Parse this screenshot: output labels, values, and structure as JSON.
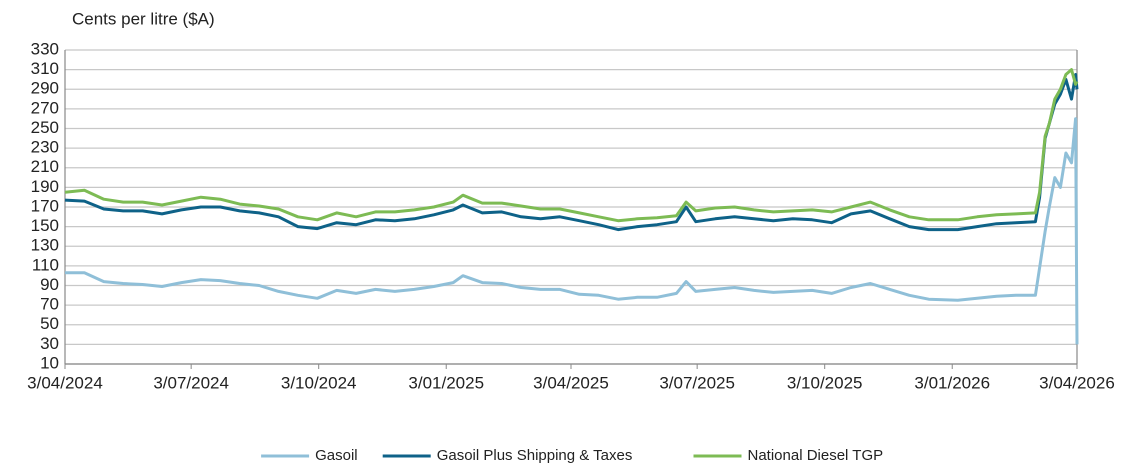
{
  "chart_data": {
    "type": "line",
    "y_label": "Cents per litre ($A)",
    "x": [
      "2024-04-03",
      "2024-04-17",
      "2024-05-01",
      "2024-05-15",
      "2024-05-29",
      "2024-06-12",
      "2024-06-26",
      "2024-07-10",
      "2024-07-24",
      "2024-08-07",
      "2024-08-21",
      "2024-09-04",
      "2024-09-18",
      "2024-10-02",
      "2024-10-16",
      "2024-10-30",
      "2024-11-13",
      "2024-11-27",
      "2024-12-11",
      "2024-12-25",
      "2025-01-08",
      "2025-01-15",
      "2025-01-29",
      "2025-02-12",
      "2025-02-26",
      "2025-03-12",
      "2025-03-26",
      "2025-04-09",
      "2025-04-23",
      "2025-05-07",
      "2025-05-21",
      "2025-06-04",
      "2025-06-18",
      "2025-06-25",
      "2025-07-02",
      "2025-07-16",
      "2025-07-30",
      "2025-08-13",
      "2025-08-27",
      "2025-09-10",
      "2025-09-24",
      "2025-10-08",
      "2025-10-22",
      "2025-11-05",
      "2025-11-19",
      "2025-12-03",
      "2025-12-17",
      "2026-01-07",
      "2026-01-21",
      "2026-02-04",
      "2026-02-18",
      "2026-03-04",
      "2026-03-07",
      "2026-03-11",
      "2026-03-14",
      "2026-03-18",
      "2026-03-22",
      "2026-03-26",
      "2026-03-30",
      "2026-04-02",
      "2026-04-03"
    ],
    "series": [
      {
        "name": "Gasoil",
        "color": "#8fbfd8",
        "values": [
          103,
          103,
          94,
          92,
          91,
          89,
          93,
          96,
          95,
          92,
          90,
          84,
          80,
          77,
          85,
          82,
          86,
          84,
          86,
          89,
          93,
          100,
          93,
          92,
          88,
          86,
          86,
          81,
          80,
          76,
          78,
          78,
          82,
          94,
          84,
          86,
          88,
          85,
          83,
          84,
          85,
          82,
          88,
          92,
          86,
          80,
          76,
          75,
          77,
          79,
          80,
          80,
          108,
          145,
          170,
          200,
          190,
          225,
          215,
          260,
          30
        ]
      },
      {
        "name": "Gasoil Plus Shipping & Taxes",
        "color": "#0e6288",
        "values": [
          177,
          176,
          168,
          166,
          166,
          163,
          167,
          170,
          170,
          166,
          164,
          160,
          150,
          148,
          154,
          152,
          157,
          156,
          158,
          162,
          167,
          172,
          164,
          165,
          160,
          158,
          160,
          156,
          152,
          147,
          150,
          152,
          155,
          170,
          155,
          158,
          160,
          158,
          156,
          158,
          157,
          154,
          163,
          166,
          158,
          150,
          147,
          147,
          150,
          153,
          154,
          155,
          180,
          240,
          255,
          275,
          285,
          300,
          280,
          305,
          290
        ]
      },
      {
        "name": "National Diesel TGP",
        "color": "#7dbb54",
        "values": [
          185,
          187,
          178,
          175,
          175,
          172,
          176,
          180,
          178,
          173,
          171,
          168,
          160,
          157,
          164,
          160,
          165,
          165,
          167,
          170,
          175,
          182,
          174,
          174,
          171,
          168,
          168,
          164,
          160,
          156,
          158,
          159,
          161,
          175,
          166,
          169,
          170,
          167,
          165,
          166,
          167,
          165,
          170,
          175,
          167,
          160,
          157,
          157,
          160,
          162,
          163,
          164,
          185,
          242,
          255,
          280,
          290,
          305,
          310,
          295,
          298
        ]
      }
    ],
    "xlim": [
      "2024-04-03",
      "2026-04-03"
    ],
    "xticks": [
      {
        "value": "2024-04-03",
        "label": "3/04/2024"
      },
      {
        "value": "2024-07-03",
        "label": "3/07/2024"
      },
      {
        "value": "2024-10-03",
        "label": "3/10/2024"
      },
      {
        "value": "2025-01-03",
        "label": "3/01/2025"
      },
      {
        "value": "2025-04-03",
        "label": "3/04/2025"
      },
      {
        "value": "2025-07-03",
        "label": "3/07/2025"
      },
      {
        "value": "2025-10-03",
        "label": "3/10/2025"
      },
      {
        "value": "2026-01-03",
        "label": "3/01/2026"
      },
      {
        "value": "2026-04-03",
        "label": "3/04/2026"
      }
    ],
    "ylim": [
      10,
      330
    ],
    "yticks": [
      10,
      30,
      50,
      70,
      90,
      110,
      130,
      150,
      170,
      190,
      210,
      230,
      250,
      270,
      290,
      310,
      330
    ],
    "grid": true,
    "legend": "bottom"
  }
}
